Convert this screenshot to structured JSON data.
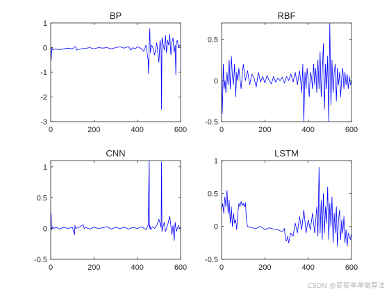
{
  "watermark": "CSDN @简简单单做算法",
  "colors": {
    "line": "#0000ff",
    "axes": "#262626",
    "background": "#ffffff"
  },
  "chart_data": [
    {
      "type": "line",
      "title": "BP",
      "xlabel": "",
      "ylabel": "",
      "xlim": [
        0,
        600
      ],
      "ylim": [
        -3,
        1
      ],
      "xticks": [
        0,
        200,
        400,
        600
      ],
      "yticks": [
        -3,
        -2,
        -1,
        0,
        1
      ],
      "xtick_labels": [
        "0",
        "200",
        "400",
        "600"
      ],
      "ytick_labels": [
        "-3",
        "-2",
        "-1",
        "0",
        "1"
      ],
      "grid": false,
      "series": [
        {
          "x": [
            0,
            2,
            5,
            10,
            20,
            40,
            60,
            80,
            100,
            115,
            120,
            140,
            160,
            180,
            200,
            220,
            240,
            260,
            280,
            300,
            320,
            340,
            360,
            370,
            380,
            390,
            400,
            410,
            420,
            430,
            440,
            450,
            452,
            455,
            458,
            460,
            465,
            470,
            480,
            490,
            500,
            505,
            510,
            512,
            514,
            520,
            525,
            530,
            535,
            540,
            545,
            550,
            555,
            560,
            565,
            570,
            575,
            578,
            580,
            585,
            590,
            595,
            600
          ],
          "y": [
            0.05,
            -0.5,
            0.0,
            -0.1,
            -0.05,
            -0.08,
            -0.05,
            -0.02,
            -0.05,
            0.05,
            -0.1,
            -0.05,
            -0.03,
            0.0,
            -0.05,
            0.0,
            -0.02,
            0.0,
            -0.05,
            0.0,
            0.03,
            -0.02,
            0.05,
            -0.1,
            0.0,
            -0.05,
            0.03,
            0.0,
            -0.05,
            -0.15,
            0.1,
            -0.5,
            -1.05,
            0.2,
            0.78,
            -0.2,
            0.1,
            0.05,
            -0.3,
            0.2,
            -0.6,
            0.3,
            -0.1,
            -2.5,
            0.4,
            0.1,
            -0.1,
            0.5,
            -0.2,
            0.3,
            0.1,
            0.55,
            -0.3,
            0.2,
            0.4,
            -0.2,
            0.1,
            -1.1,
            0.2,
            0.3,
            0.0,
            0.1,
            0.05
          ]
        }
      ]
    },
    {
      "type": "line",
      "title": "RBF",
      "xlabel": "",
      "ylabel": "",
      "xlim": [
        0,
        600
      ],
      "ylim": [
        -0.5,
        0.7
      ],
      "xticks": [
        0,
        200,
        400,
        600
      ],
      "yticks": [
        -0.5,
        0,
        0.5
      ],
      "xtick_labels": [
        "0",
        "200",
        "400",
        "600"
      ],
      "ytick_labels": [
        "-0.5",
        "0",
        "0.5"
      ],
      "grid": false,
      "series": [
        {
          "x": [
            0,
            3,
            5,
            8,
            12,
            16,
            20,
            25,
            30,
            35,
            40,
            45,
            50,
            55,
            60,
            65,
            70,
            75,
            80,
            90,
            100,
            110,
            120,
            130,
            140,
            150,
            160,
            170,
            180,
            190,
            200,
            210,
            220,
            230,
            240,
            250,
            260,
            270,
            280,
            290,
            300,
            310,
            320,
            330,
            340,
            350,
            360,
            365,
            370,
            375,
            380,
            385,
            390,
            395,
            400,
            405,
            410,
            415,
            420,
            425,
            430,
            435,
            440,
            445,
            450,
            455,
            460,
            465,
            470,
            475,
            480,
            485,
            490,
            495,
            500,
            505,
            510,
            515,
            520,
            525,
            530,
            535,
            540,
            545,
            550,
            555,
            560,
            565,
            570,
            575,
            580,
            585,
            590,
            595,
            600
          ],
          "y": [
            0.3,
            -0.4,
            -0.2,
            0.2,
            -0.1,
            0.0,
            -0.15,
            0.1,
            -0.05,
            0.25,
            -0.1,
            0.3,
            0.05,
            -0.05,
            0.2,
            -0.2,
            0.1,
            0.0,
            0.15,
            -0.1,
            0.2,
            0.0,
            0.12,
            -0.05,
            0.08,
            0.03,
            -0.08,
            0.1,
            -0.02,
            0.05,
            -0.03,
            0.06,
            0.0,
            -0.04,
            0.05,
            -0.02,
            0.03,
            0.0,
            0.04,
            -0.03,
            0.05,
            0.0,
            0.08,
            -0.02,
            0.1,
            -0.05,
            0.12,
            0.0,
            -0.15,
            0.2,
            -0.5,
            0.1,
            -0.1,
            0.15,
            0.0,
            -0.2,
            0.1,
            0.05,
            -0.1,
            0.2,
            -0.05,
            0.15,
            -0.15,
            0.25,
            -0.1,
            0.35,
            -0.2,
            0.1,
            0.45,
            -0.35,
            0.2,
            -0.1,
            0.3,
            -0.5,
            0.7,
            -0.3,
            0.25,
            -0.15,
            0.1,
            0.2,
            -0.25,
            0.15,
            -0.05,
            0.1,
            -0.2,
            0.05,
            0.15,
            -0.1,
            0.1,
            -0.05,
            0.08,
            -0.1,
            0.05,
            -0.05,
            0.0
          ]
        }
      ]
    },
    {
      "type": "line",
      "title": "CNN",
      "xlabel": "",
      "ylabel": "",
      "xlim": [
        0,
        600
      ],
      "ylim": [
        -0.5,
        1.1
      ],
      "xticks": [
        0,
        200,
        400,
        600
      ],
      "yticks": [
        -0.5,
        0,
        0.5,
        1
      ],
      "xtick_labels": [
        "0",
        "200",
        "400",
        "600"
      ],
      "ytick_labels": [
        "-0.5",
        "0",
        "0.5",
        "1"
      ],
      "grid": false,
      "series": [
        {
          "x": [
            0,
            2,
            4,
            8,
            15,
            25,
            40,
            60,
            80,
            100,
            110,
            112,
            115,
            130,
            150,
            155,
            160,
            180,
            200,
            220,
            240,
            260,
            280,
            300,
            320,
            340,
            360,
            380,
            400,
            420,
            440,
            450,
            455,
            456,
            458,
            462,
            470,
            480,
            490,
            500,
            510,
            512,
            514,
            518,
            525,
            530,
            540,
            550,
            560,
            565,
            570,
            575,
            580,
            585,
            590,
            595,
            600
          ],
          "y": [
            0.02,
            0.25,
            -0.02,
            0.03,
            0.0,
            0.02,
            -0.01,
            0.02,
            0.0,
            0.02,
            -0.1,
            0.05,
            0.0,
            0.02,
            0.06,
            0.0,
            0.02,
            -0.01,
            0.02,
            0.0,
            0.01,
            0.03,
            -0.01,
            0.02,
            0.0,
            0.02,
            -0.01,
            0.02,
            0.0,
            0.03,
            -0.02,
            0.05,
            1.15,
            0.0,
            0.05,
            -0.02,
            0.03,
            0.0,
            0.05,
            0.15,
            0.02,
            1.08,
            -0.05,
            0.02,
            0.1,
            -0.05,
            0.05,
            0.2,
            -0.1,
            0.05,
            -0.2,
            0.1,
            -0.05,
            0.0,
            0.05,
            0.0,
            0.02
          ]
        }
      ]
    },
    {
      "type": "line",
      "title": "LSTM",
      "xlabel": "",
      "ylabel": "",
      "xlim": [
        0,
        600
      ],
      "ylim": [
        -0.5,
        1
      ],
      "xticks": [
        0,
        200,
        400,
        600
      ],
      "yticks": [
        -0.5,
        0,
        0.5,
        1
      ],
      "xtick_labels": [
        "0",
        "200",
        "400",
        "600"
      ],
      "ytick_labels": [
        "-0.5",
        "0",
        "0.5",
        "1"
      ],
      "grid": false,
      "series": [
        {
          "x": [
            0,
            5,
            10,
            15,
            20,
            25,
            30,
            35,
            40,
            45,
            50,
            55,
            60,
            65,
            70,
            75,
            80,
            85,
            90,
            95,
            100,
            105,
            110,
            115,
            120,
            140,
            160,
            180,
            200,
            220,
            240,
            260,
            280,
            290,
            295,
            300,
            305,
            310,
            320,
            330,
            340,
            350,
            360,
            370,
            380,
            390,
            400,
            410,
            420,
            430,
            440,
            445,
            450,
            455,
            460,
            465,
            470,
            475,
            480,
            485,
            490,
            495,
            500,
            505,
            510,
            515,
            520,
            525,
            530,
            535,
            540,
            545,
            550,
            555,
            560,
            565,
            570,
            575,
            580,
            585,
            590,
            595,
            600
          ],
          "y": [
            0.25,
            0.35,
            0.2,
            0.45,
            0.3,
            0.55,
            0.2,
            0.4,
            0.05,
            0.3,
            0.0,
            0.2,
            0.05,
            0.1,
            -0.05,
            0.2,
            0.35,
            0.3,
            0.38,
            0.32,
            0.35,
            0.3,
            0.36,
            0.1,
            0.0,
            -0.02,
            -0.03,
            0.0,
            -0.05,
            -0.02,
            -0.04,
            -0.05,
            -0.08,
            -0.03,
            -0.2,
            -0.22,
            -0.15,
            -0.25,
            -0.1,
            -0.15,
            0.05,
            -0.1,
            0.15,
            -0.05,
            0.25,
            -0.1,
            0.1,
            -0.05,
            0.2,
            -0.1,
            0.3,
            -0.15,
            0.9,
            -0.1,
            0.4,
            -0.2,
            0.5,
            -0.1,
            0.3,
            0.05,
            0.6,
            -0.2,
            0.35,
            0.0,
            0.45,
            -0.25,
            0.2,
            -0.1,
            0.3,
            -0.3,
            0.1,
            0.25,
            -0.2,
            0.1,
            -0.1,
            0.15,
            -0.25,
            -0.05,
            -0.3,
            -0.1,
            -0.15,
            -0.2,
            -0.1
          ]
        }
      ]
    }
  ]
}
